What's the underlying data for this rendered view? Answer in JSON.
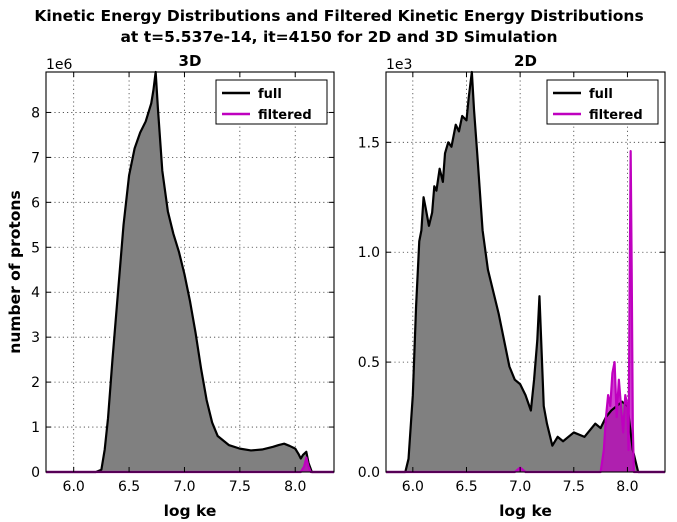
{
  "figure": {
    "title_line1": "Kinetic Energy Distributions and Filtered Kinetic Energy Distributions",
    "title_line2": "at t=5.537e-14, it=4150 for 2D and 3D Simulation"
  },
  "colors": {
    "full": "#000000",
    "full_fill": "#808080",
    "filtered": "#bf00bf"
  },
  "chart_data": [
    {
      "type": "area",
      "title": "3D",
      "xlabel": "log ke",
      "ylabel": "number of protons",
      "y_offset_label": "1e6",
      "xlim": [
        5.75,
        8.35
      ],
      "ylim": [
        0,
        8.9
      ],
      "x_ticks": [
        6.0,
        6.5,
        7.0,
        7.5,
        8.0
      ],
      "x_tick_labels": [
        "6.0",
        "6.5",
        "7.0",
        "7.5",
        "8.0"
      ],
      "y_ticks": [
        0,
        1,
        2,
        3,
        4,
        5,
        6,
        7,
        8
      ],
      "y_tick_labels": [
        "0",
        "1",
        "2",
        "3",
        "4",
        "5",
        "6",
        "7",
        "8"
      ],
      "grid": true,
      "legend": "top-right",
      "series": [
        {
          "name": "full",
          "x": [
            5.75,
            6.2,
            6.25,
            6.28,
            6.31,
            6.35,
            6.4,
            6.45,
            6.5,
            6.55,
            6.6,
            6.65,
            6.7,
            6.72,
            6.74,
            6.76,
            6.8,
            6.85,
            6.9,
            6.95,
            7.0,
            7.05,
            7.1,
            7.15,
            7.2,
            7.25,
            7.3,
            7.4,
            7.5,
            7.6,
            7.7,
            7.8,
            7.85,
            7.9,
            7.95,
            8.0,
            8.03,
            8.05,
            8.07,
            8.1,
            8.12,
            8.15,
            8.35
          ],
          "y": [
            0,
            0,
            0.05,
            0.5,
            1.2,
            2.5,
            4.0,
            5.5,
            6.6,
            7.2,
            7.55,
            7.8,
            8.2,
            8.5,
            8.9,
            8.1,
            6.7,
            5.8,
            5.3,
            4.9,
            4.4,
            3.8,
            3.1,
            2.3,
            1.6,
            1.1,
            0.8,
            0.6,
            0.52,
            0.48,
            0.5,
            0.56,
            0.6,
            0.63,
            0.58,
            0.52,
            0.4,
            0.3,
            0.38,
            0.45,
            0.2,
            0.0,
            0.0
          ]
        },
        {
          "name": "filtered",
          "x": [
            5.75,
            8.05,
            8.08,
            8.1,
            8.12,
            8.14,
            8.35
          ],
          "y": [
            0,
            0,
            0.12,
            0.32,
            0.12,
            0,
            0
          ]
        }
      ]
    },
    {
      "type": "area",
      "title": "2D",
      "xlabel": "log ke",
      "ylabel": "",
      "y_offset_label": "1e3",
      "xlim": [
        5.75,
        8.35
      ],
      "ylim": [
        0,
        1.82
      ],
      "x_ticks": [
        6.0,
        6.5,
        7.0,
        7.5,
        8.0
      ],
      "x_tick_labels": [
        "6.0",
        "6.5",
        "7.0",
        "7.5",
        "8.0"
      ],
      "y_ticks": [
        0.0,
        0.5,
        1.0,
        1.5
      ],
      "y_tick_labels": [
        "0.0",
        "0.5",
        "1.0",
        "1.5"
      ],
      "grid": true,
      "legend": "top-right",
      "series": [
        {
          "name": "full",
          "x": [
            5.75,
            5.93,
            5.96,
            6.0,
            6.03,
            6.06,
            6.08,
            6.1,
            6.12,
            6.15,
            6.18,
            6.2,
            6.22,
            6.25,
            6.28,
            6.3,
            6.33,
            6.36,
            6.4,
            6.43,
            6.46,
            6.5,
            6.52,
            6.55,
            6.57,
            6.6,
            6.65,
            6.7,
            6.75,
            6.8,
            6.85,
            6.9,
            6.95,
            7.0,
            7.05,
            7.1,
            7.13,
            7.16,
            7.18,
            7.2,
            7.22,
            7.25,
            7.3,
            7.35,
            7.4,
            7.5,
            7.6,
            7.7,
            7.75,
            7.8,
            7.85,
            7.9,
            7.95,
            8.0,
            8.05,
            8.1,
            8.35
          ],
          "y": [
            0,
            0,
            0.06,
            0.35,
            0.75,
            1.05,
            1.1,
            1.25,
            1.2,
            1.12,
            1.18,
            1.3,
            1.28,
            1.38,
            1.32,
            1.45,
            1.5,
            1.48,
            1.58,
            1.55,
            1.62,
            1.6,
            1.7,
            1.82,
            1.65,
            1.45,
            1.1,
            0.92,
            0.82,
            0.72,
            0.6,
            0.48,
            0.42,
            0.4,
            0.35,
            0.28,
            0.42,
            0.6,
            0.8,
            0.55,
            0.3,
            0.22,
            0.12,
            0.16,
            0.14,
            0.18,
            0.16,
            0.22,
            0.2,
            0.25,
            0.28,
            0.3,
            0.32,
            0.3,
            0.1,
            0.0,
            0.0
          ]
        },
        {
          "name": "filtered",
          "x": [
            5.75,
            6.95,
            7.0,
            7.05,
            7.75,
            7.78,
            7.8,
            7.82,
            7.84,
            7.86,
            7.88,
            7.9,
            7.92,
            7.94,
            7.96,
            7.98,
            8.0,
            8.01,
            8.02,
            8.03,
            8.04,
            8.05,
            8.06,
            8.35
          ],
          "y": [
            0,
            0,
            0.02,
            0,
            0,
            0.1,
            0.25,
            0.35,
            0.3,
            0.45,
            0.5,
            0.25,
            0.42,
            0.3,
            0.18,
            0.35,
            0.3,
            0.1,
            0.8,
            1.46,
            0.9,
            0.2,
            0,
            0
          ]
        }
      ]
    }
  ]
}
